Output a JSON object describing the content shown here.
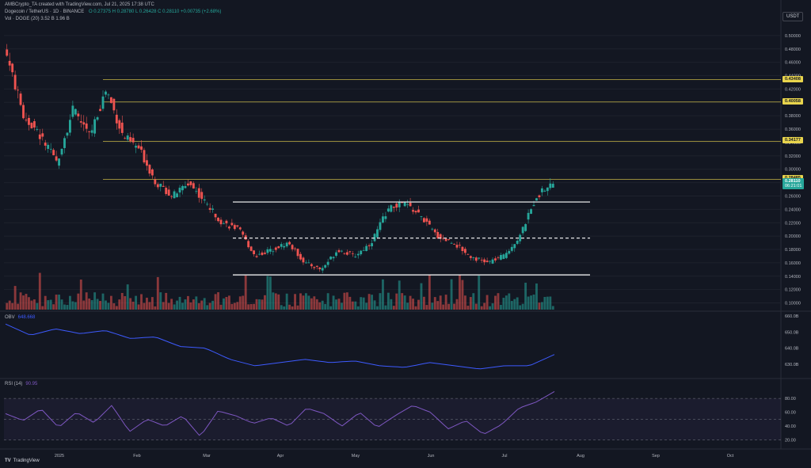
{
  "header": {
    "line1": "AMBCrypto_TA created with TradingView.com, Jul 21, 2025 17:38 UTC",
    "symbol": "Dogecoin / TetherUS · 1D · BINANCE",
    "ohlc": "O 0.27375  H 0.28780  L 0.26428  C 0.28110  +0.00735 (+2.68%)",
    "volume": "Vol · DOGE (20)  3.52 B  1.96 B",
    "obv_label": "OBV",
    "obv_value": "648.668",
    "rsi_label": "RSI (14)",
    "rsi_value": "90.95"
  },
  "currency_button": "USDT",
  "footer_logo": "TradingView",
  "colors": {
    "up": "#26a69a",
    "down": "#ef5350",
    "bg": "#131722",
    "line": "#3d5afe",
    "level": "#e8d44d",
    "rsi": "#7e57c2"
  },
  "chart_data": {
    "type": "candlestick",
    "price_ticks": [
      "0.50000",
      "0.48000",
      "0.46000",
      "0.44000",
      "0.42000",
      "0.40000",
      "0.38000",
      "0.36000",
      "0.34000",
      "0.32000",
      "0.30000",
      "0.28000",
      "0.26000",
      "0.24000",
      "0.22000",
      "0.20000",
      "0.18000",
      "0.16000",
      "0.14000",
      "0.12000",
      "0.10000"
    ],
    "price_range": [
      0.09,
      0.52
    ],
    "date_ticks": [
      "2025",
      "Feb",
      "Mar",
      "Apr",
      "May",
      "Jun",
      "Jul",
      "Aug",
      "Sep",
      "Oct"
    ],
    "obv_ticks": [
      "660.0B",
      "650.0B",
      "640.0B",
      "630.0B"
    ],
    "rsi_ticks": [
      "80.00",
      "60.00",
      "40.00",
      "20.00"
    ],
    "level_badges": [
      {
        "price": 0.434,
        "text": "0.43408"
      },
      {
        "price": 0.4006,
        "text": "0.40058"
      },
      {
        "price": 0.3418,
        "text": "0.34177"
      },
      {
        "price": 0.2849,
        "text": "0.28485"
      }
    ],
    "last_price": {
      "text": "0.28110",
      "countdown": "06:21:01"
    },
    "box_lines": [
      {
        "price": 0.251,
        "style": "solid",
        "from": "Mar 10",
        "to": "Jul 25"
      },
      {
        "price": 0.197,
        "style": "dashed",
        "from": "Mar 10",
        "to": "Jul 25"
      },
      {
        "price": 0.142,
        "style": "solid",
        "from": "Mar 10",
        "to": "Jul 25"
      }
    ],
    "price_path_anchors": [
      0.47,
      0.38,
      0.35,
      0.31,
      0.39,
      0.35,
      0.42,
      0.35,
      0.33,
      0.28,
      0.26,
      0.28,
      0.25,
      0.22,
      0.21,
      0.17,
      0.18,
      0.19,
      0.16,
      0.15,
      0.18,
      0.17,
      0.19,
      0.24,
      0.25,
      0.23,
      0.2,
      0.19,
      0.17,
      0.16,
      0.17,
      0.2,
      0.26,
      0.28
    ],
    "obv_anchors": [
      655,
      648,
      652,
      649,
      651,
      646,
      647,
      641,
      640,
      633,
      629,
      631,
      633,
      631,
      632,
      629,
      628,
      631,
      629,
      627,
      629,
      629,
      636
    ],
    "rsi_anchors": [
      58,
      48,
      65,
      38,
      60,
      45,
      70,
      32,
      50,
      40,
      55,
      25,
      62,
      55,
      44,
      52,
      40,
      66,
      58,
      40,
      60,
      38,
      55,
      70,
      60,
      36,
      48,
      28,
      42,
      66,
      75,
      90
    ]
  }
}
